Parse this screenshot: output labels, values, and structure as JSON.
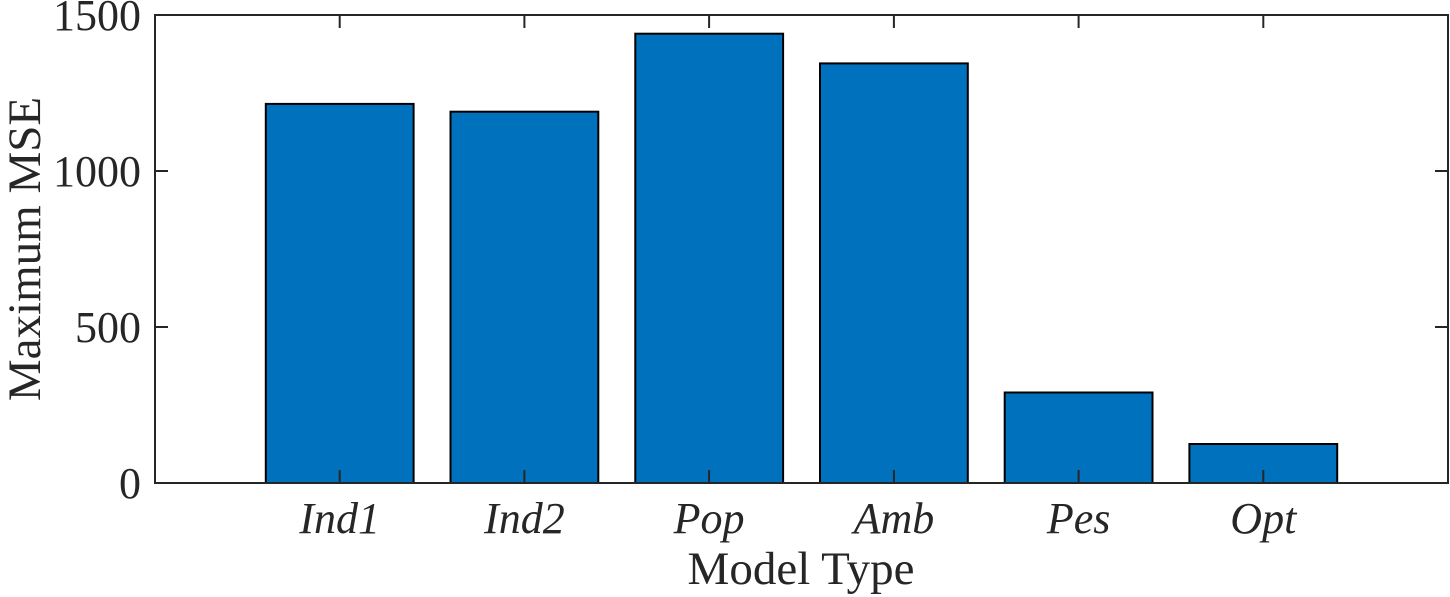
{
  "chart_data": {
    "type": "bar",
    "title": "",
    "xlabel": "Model Type",
    "ylabel": "Maximum MSE",
    "categories": [
      "Ind1",
      "Ind2",
      "Pop",
      "Amb",
      "Pes",
      "Opt"
    ],
    "values": [
      1215,
      1190,
      1440,
      1345,
      290,
      125
    ],
    "ylim": [
      0,
      1500
    ],
    "yticks": [
      0,
      500,
      1000,
      1500
    ],
    "xlim": [
      0,
      7
    ],
    "bar_width_fraction": 0.8,
    "grid": false,
    "legend_position": "none",
    "category_label_style": "italic",
    "colors": {
      "bar_fill": "#0072BD",
      "bar_edge": "#000000",
      "axis": "#262626",
      "text": "#262626",
      "background": "#ffffff"
    },
    "layout": {
      "plot_left": 155,
      "plot_top": 15,
      "plot_right": 1448,
      "plot_bottom": 483,
      "tick_length": 13,
      "box_on": true,
      "ticks_direction": "in",
      "mirrored_ticks": true
    }
  }
}
